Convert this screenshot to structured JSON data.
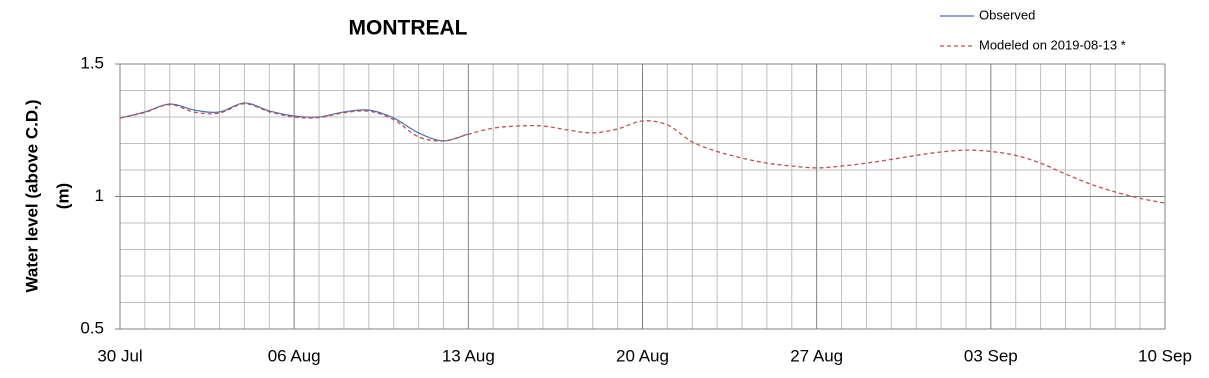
{
  "chart_data": {
    "type": "line",
    "title": "MONTREAL",
    "ylabel": [
      "Water level (above C.D.)",
      "(m)"
    ],
    "categories": [
      "30 Jul",
      null,
      null,
      null,
      null,
      null,
      null,
      "06 Aug",
      null,
      null,
      null,
      null,
      null,
      null,
      "13 Aug",
      null,
      null,
      null,
      null,
      null,
      null,
      "20 Aug",
      null,
      null,
      null,
      null,
      null,
      null,
      "27 Aug",
      null,
      null,
      null,
      null,
      null,
      null,
      "03 Sep",
      null,
      null,
      null,
      null,
      null,
      null,
      "10 Sep"
    ],
    "series": [
      {
        "name": "Observed",
        "color": "#4a6fb5",
        "dash": false,
        "values": [
          1.296,
          1.319,
          1.349,
          1.326,
          1.319,
          1.353,
          1.323,
          1.304,
          1.3,
          1.319,
          1.326,
          1.296,
          1.24,
          1.21,
          1.236,
          null,
          null,
          null,
          null,
          null,
          null,
          null,
          null,
          null,
          null,
          null,
          null,
          null,
          null,
          null,
          null,
          null,
          null,
          null,
          null,
          null,
          null,
          null,
          null,
          null,
          null,
          null,
          null
        ]
      },
      {
        "name": "Modeled on 2019-08-13 *",
        "color": "#c0504d",
        "dash": true,
        "values": [
          1.296,
          1.317,
          1.347,
          1.318,
          1.315,
          1.35,
          1.32,
          1.3,
          1.298,
          1.316,
          1.322,
          1.29,
          1.225,
          1.21,
          1.235,
          1.258,
          1.266,
          1.266,
          1.251,
          1.24,
          1.255,
          1.285,
          1.27,
          1.206,
          1.17,
          1.145,
          1.126,
          1.115,
          1.108,
          1.115,
          1.126,
          1.14,
          1.155,
          1.168,
          1.175,
          1.17,
          1.155,
          1.126,
          1.085,
          1.047,
          1.017,
          0.993,
          0.975
        ]
      }
    ],
    "ylim": [
      0.5,
      1.5
    ],
    "yticks": [
      0.5,
      1,
      1.5
    ],
    "grid": true,
    "legend": "top-right"
  }
}
